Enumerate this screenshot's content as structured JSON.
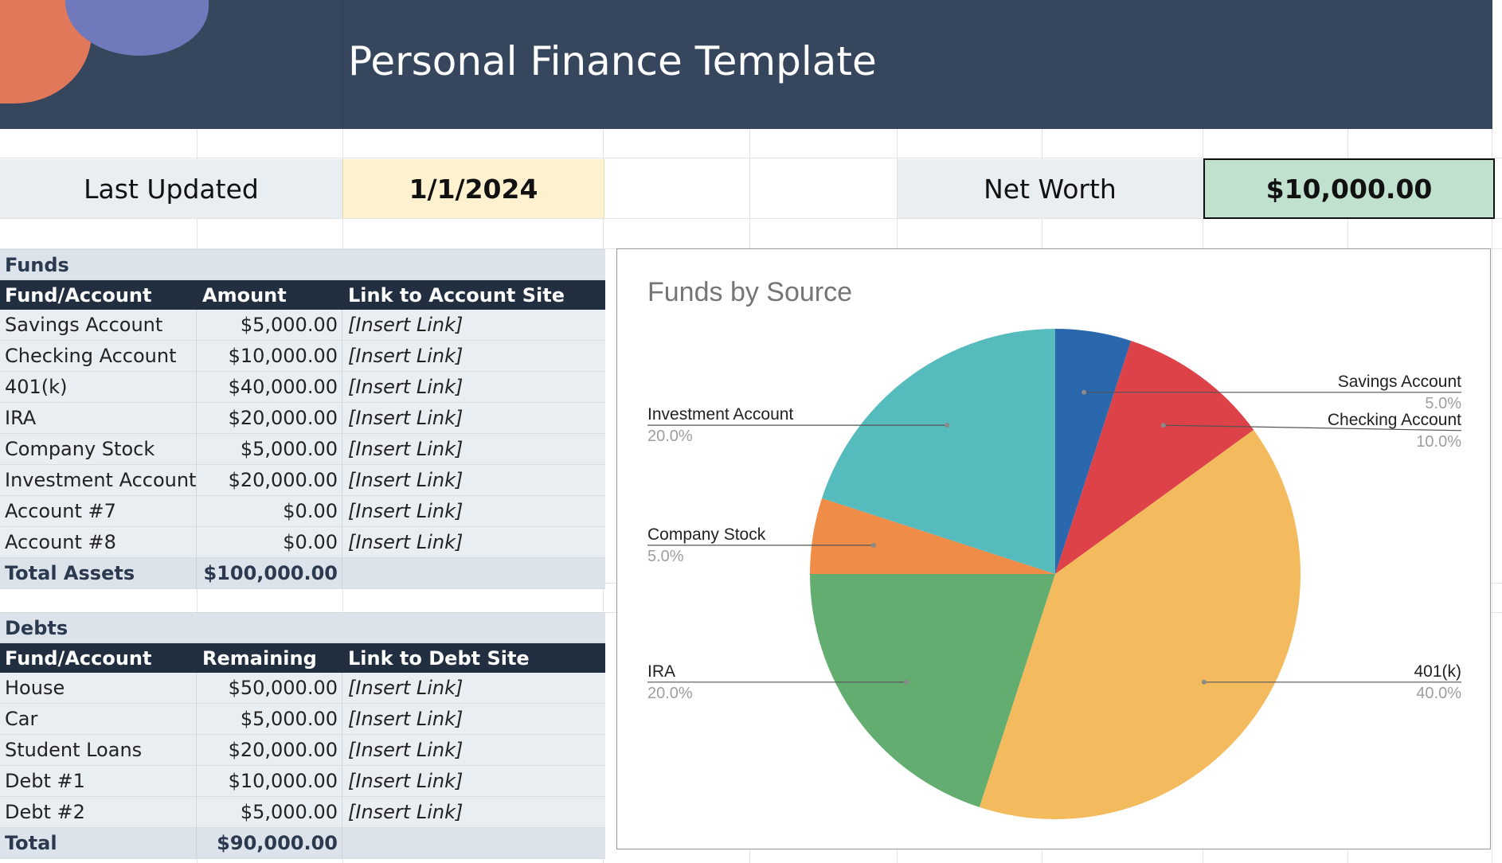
{
  "header": {
    "title": "Personal Finance Template"
  },
  "summary": {
    "last_updated_label": "Last Updated",
    "last_updated_value": "1/1/2024",
    "net_worth_label": "Net Worth",
    "net_worth_value": "$10,000.00"
  },
  "funds": {
    "section_title": "Funds",
    "headers": [
      "Fund/Account",
      "Amount",
      "Link to Account Site"
    ],
    "rows": [
      {
        "name": "Savings Account",
        "amount": "$5,000.00",
        "link": "[Insert Link]"
      },
      {
        "name": "Checking Account",
        "amount": "$10,000.00",
        "link": "[Insert Link]"
      },
      {
        "name": "401(k)",
        "amount": "$40,000.00",
        "link": "[Insert Link]"
      },
      {
        "name": "IRA",
        "amount": "$20,000.00",
        "link": "[Insert Link]"
      },
      {
        "name": "Company Stock",
        "amount": "$5,000.00",
        "link": "[Insert Link]"
      },
      {
        "name": "Investment Account",
        "amount": "$20,000.00",
        "link": "[Insert Link]"
      },
      {
        "name": "Account #7",
        "amount": "$0.00",
        "link": "[Insert Link]"
      },
      {
        "name": "Account #8",
        "amount": "$0.00",
        "link": "[Insert Link]"
      }
    ],
    "total_label": "Total Assets",
    "total_value": "$100,000.00"
  },
  "debts": {
    "section_title": "Debts",
    "headers": [
      "Fund/Account",
      "Remaining",
      "Link to Debt Site"
    ],
    "rows": [
      {
        "name": "House",
        "amount": "$50,000.00",
        "link": "[Insert Link]"
      },
      {
        "name": "Car",
        "amount": "$5,000.00",
        "link": "[Insert Link]"
      },
      {
        "name": "Student Loans",
        "amount": "$20,000.00",
        "link": "[Insert Link]"
      },
      {
        "name": "Debt #1",
        "amount": "$10,000.00",
        "link": "[Insert Link]"
      },
      {
        "name": "Debt #2",
        "amount": "$5,000.00",
        "link": "[Insert Link]"
      }
    ],
    "total_label": "Total",
    "total_value": "$90,000.00"
  },
  "colors": {
    "banner": "#35465d",
    "savings": "#2a67ad",
    "checking": "#dd4248",
    "k401": "#f4bb5e",
    "ira": "#64ad70",
    "company_stock": "#ef8c47",
    "investment": "#56bbbc"
  },
  "chart_data": {
    "type": "pie",
    "title": "Funds by Source",
    "slices": [
      {
        "label": "Savings Account",
        "value": 5000,
        "percent": "5.0%",
        "color": "#2a67ad"
      },
      {
        "label": "Checking Account",
        "value": 10000,
        "percent": "10.0%",
        "color": "#dd4248"
      },
      {
        "label": "401(k)",
        "value": 40000,
        "percent": "40.0%",
        "color": "#f4bb5e"
      },
      {
        "label": "IRA",
        "value": 20000,
        "percent": "20.0%",
        "color": "#64ad70"
      },
      {
        "label": "Company Stock",
        "value": 5000,
        "percent": "5.0%",
        "color": "#ef8c47"
      },
      {
        "label": "Investment Account",
        "value": 20000,
        "percent": "20.0%",
        "color": "#56bbbc"
      }
    ]
  }
}
